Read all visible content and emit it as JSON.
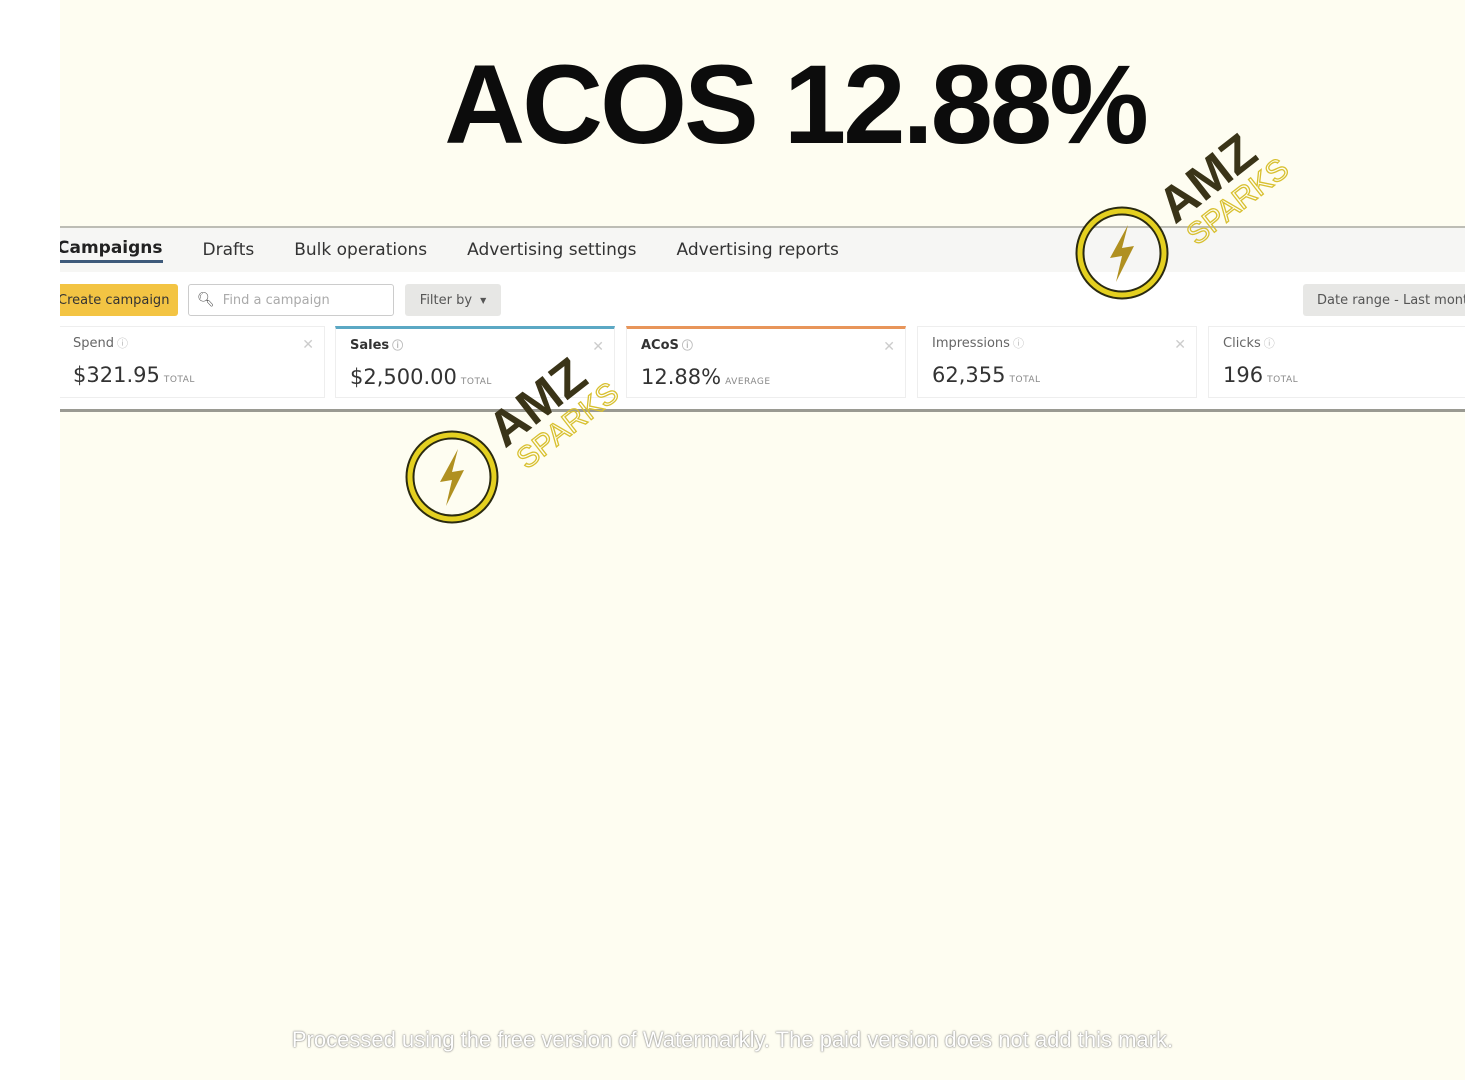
{
  "headline": "ACOS 12.88%",
  "tabs": [
    {
      "label": "Campaigns",
      "active": true
    },
    {
      "label": "Drafts"
    },
    {
      "label": "Bulk operations"
    },
    {
      "label": "Advertising settings"
    },
    {
      "label": "Advertising reports"
    }
  ],
  "toolbar": {
    "create_label": "Create campaign",
    "search_placeholder": "Find a campaign",
    "filter_label": "Filter by",
    "date_range_label": "Date range - Last mont"
  },
  "metrics": [
    {
      "label": "Spend",
      "value": "$321.95",
      "unit": "TOTAL",
      "accent": null
    },
    {
      "label": "Sales",
      "value": "$2,500.00",
      "unit": "TOTAL",
      "accent": "#5ba8c4"
    },
    {
      "label": "ACoS",
      "value": "12.88%",
      "unit": "AVERAGE",
      "accent": "#e8955a"
    },
    {
      "label": "Impressions",
      "value": "62,355",
      "unit": "TOTAL",
      "accent": null
    },
    {
      "label": "Clicks",
      "value": "196",
      "unit": "TOTAL",
      "accent": null
    }
  ],
  "watermark_logo": "AMZ SPARKS",
  "footer_watermark": "Processed using the free version of Watermarkly. The paid version does not add this mark.",
  "colors": {
    "background": "#fefdf1",
    "create_button": "#f3c443",
    "logo_gold": "#c9a922"
  }
}
